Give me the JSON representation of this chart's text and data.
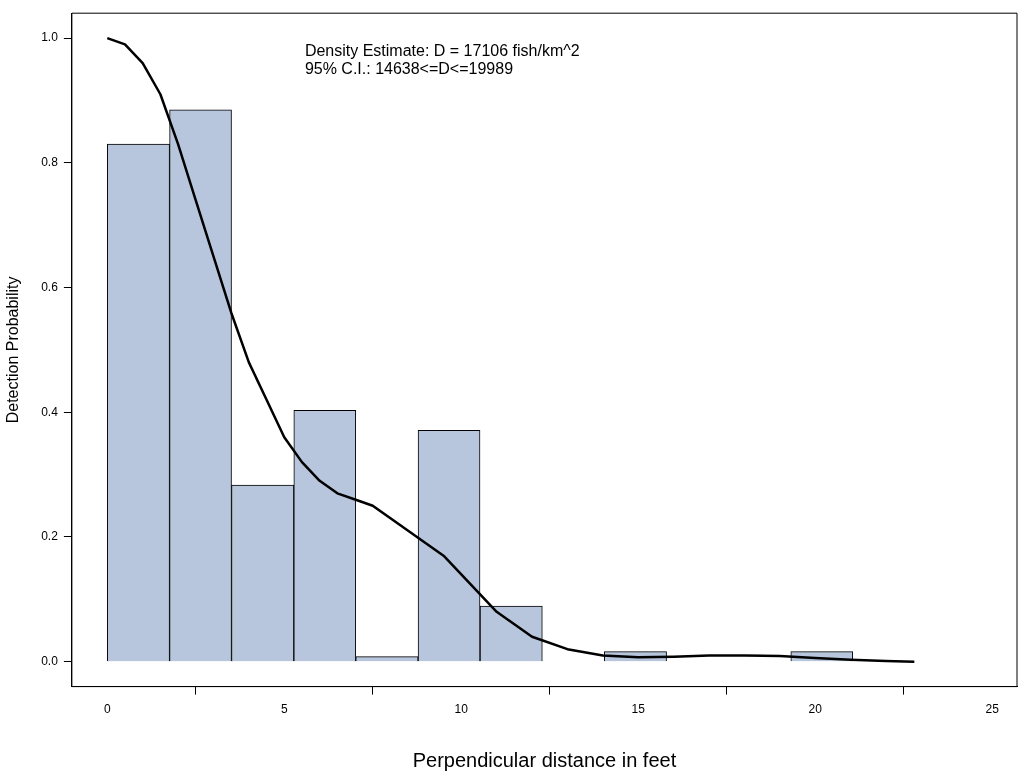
{
  "chart_data": {
    "type": "histogram",
    "xlabel": "Perpendicular distance in feet",
    "ylabel": "Detection Probability",
    "annotations": [
      "Density Estimate: D = 17106 fish/km^2",
      "95% C.I.: 14638<=D<=19989"
    ],
    "bins": [
      0,
      1.76,
      3.51,
      5.27,
      7.02,
      8.78,
      10.53,
      12.29,
      14.04,
      15.8,
      17.55,
      19.31,
      21.06
    ],
    "values": [
      0.83,
      0.885,
      0.283,
      0.403,
      0.008,
      0.371,
      0.089,
      0,
      0.016,
      0,
      0,
      0.016
    ],
    "color": "#b7c6dc",
    "series": [
      {
        "type": "line",
        "color": "#000000",
        "x": [
          0,
          0.5,
          1,
          1.5,
          2,
          2.5,
          3,
          3.5,
          4,
          4.5,
          5,
          5.5,
          6,
          6.5,
          7,
          7.5,
          8,
          8.5,
          9,
          9.5,
          10,
          10.5,
          11,
          11.5,
          12,
          13,
          14,
          15,
          16,
          17,
          18,
          19,
          20,
          21,
          22,
          22.8
        ],
        "values": [
          1.0,
          0.99,
          0.96,
          0.91,
          0.83,
          0.74,
          0.65,
          0.56,
          0.48,
          0.42,
          0.36,
          0.32,
          0.29,
          0.27,
          0.26,
          0.25,
          0.23,
          0.21,
          0.19,
          0.17,
          0.14,
          0.11,
          0.08,
          0.06,
          0.04,
          0.02,
          0.01,
          0.007,
          0.008,
          0.01,
          0.01,
          0.009,
          0.006,
          0.003,
          0.001,
          0
        ]
      }
    ],
    "xlim": [
      -1,
      25.7
    ],
    "ylim": [
      -0.04,
      1.04
    ],
    "xticks": [
      0,
      5,
      10,
      15,
      20,
      25
    ],
    "yticks": [
      {
        "value": 0,
        "label": "0.0"
      },
      {
        "value": 0.2,
        "label": "0.2"
      },
      {
        "value": 0.4,
        "label": "0.4"
      },
      {
        "value": 0.6,
        "label": "0.6"
      },
      {
        "value": 0.8,
        "label": "0.8"
      },
      {
        "value": 1,
        "label": "1.0"
      }
    ],
    "grid": false,
    "legend": false,
    "marker": "none",
    "line_style": "solid"
  }
}
